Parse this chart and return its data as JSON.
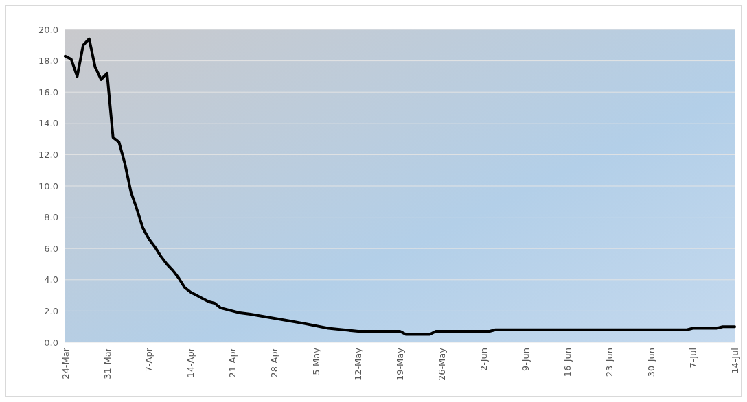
{
  "chart_data": {
    "type": "line",
    "grid": "y",
    "line_style": "solid",
    "xlim": [
      "--03-24",
      "--07-14"
    ],
    "xticks": [
      {
        "value": "--03-24",
        "label": "24-Mar"
      },
      {
        "value": "--03-31",
        "label": "31-Mar"
      },
      {
        "value": "--04-07",
        "label": "7-Apr"
      },
      {
        "value": "--04-14",
        "label": "14-Apr"
      },
      {
        "value": "--04-21",
        "label": "21-Apr"
      },
      {
        "value": "--04-28",
        "label": "28-Apr"
      },
      {
        "value": "--05-05",
        "label": "5-May"
      },
      {
        "value": "--05-12",
        "label": "12-May"
      },
      {
        "value": "--05-19",
        "label": "19-May"
      },
      {
        "value": "--05-26",
        "label": "26-May"
      },
      {
        "value": "--06-02",
        "label": "2-Jun"
      },
      {
        "value": "--06-09",
        "label": "9-Jun"
      },
      {
        "value": "--06-16",
        "label": "16-Jun"
      },
      {
        "value": "--06-23",
        "label": "23-Jun"
      },
      {
        "value": "--06-30",
        "label": "30-Jun"
      },
      {
        "value": "--07-07",
        "label": "7-Jul"
      },
      {
        "value": "--07-14",
        "label": "14-Jul"
      }
    ],
    "ylim": [
      0,
      20
    ],
    "yticks": [
      {
        "value": 0,
        "label": "0.0"
      },
      {
        "value": 2,
        "label": "2.0"
      },
      {
        "value": 4,
        "label": "4.0"
      },
      {
        "value": 6,
        "label": "6.0"
      },
      {
        "value": 8,
        "label": "8.0"
      },
      {
        "value": 10,
        "label": "10.0"
      },
      {
        "value": 12,
        "label": "12.0"
      },
      {
        "value": 14,
        "label": "14.0"
      },
      {
        "value": 16,
        "label": "16.0"
      },
      {
        "value": 18,
        "label": "18.0"
      },
      {
        "value": 20,
        "label": "20.0"
      }
    ],
    "series": [
      {
        "color": "#000000",
        "x": [
          "--03-24",
          "--03-25",
          "--03-26",
          "--03-27",
          "--03-28",
          "--03-29",
          "--03-30",
          "--03-31",
          "--04-01",
          "--04-02",
          "--04-03",
          "--04-04",
          "--04-05",
          "--04-06",
          "--04-07",
          "--04-08",
          "--04-09",
          "--04-10",
          "--04-11",
          "--04-12",
          "--04-13",
          "--04-14",
          "--04-15",
          "--04-16",
          "--04-17",
          "--04-18",
          "--04-19",
          "--04-20",
          "--04-21",
          "--04-22",
          "--04-24",
          "--04-27",
          "--04-30",
          "--05-03",
          "--05-07",
          "--05-12",
          "--05-19",
          "--05-20",
          "--05-24",
          "--05-25",
          "--06-03",
          "--06-04",
          "--07-06",
          "--07-07",
          "--07-11",
          "--07-12",
          "--07-14"
        ],
        "values": [
          18.3,
          18.1,
          17.0,
          19.0,
          19.4,
          17.6,
          16.8,
          17.2,
          13.1,
          12.8,
          11.4,
          9.6,
          8.5,
          7.3,
          6.6,
          6.1,
          5.5,
          5.0,
          4.6,
          4.1,
          3.5,
          3.2,
          3.0,
          2.8,
          2.6,
          2.5,
          2.2,
          2.1,
          2.0,
          1.9,
          1.8,
          1.6,
          1.4,
          1.2,
          0.9,
          0.7,
          0.7,
          0.5,
          0.5,
          0.7,
          0.7,
          0.8,
          0.8,
          0.9,
          0.9,
          1.0,
          1.0
        ]
      }
    ]
  }
}
